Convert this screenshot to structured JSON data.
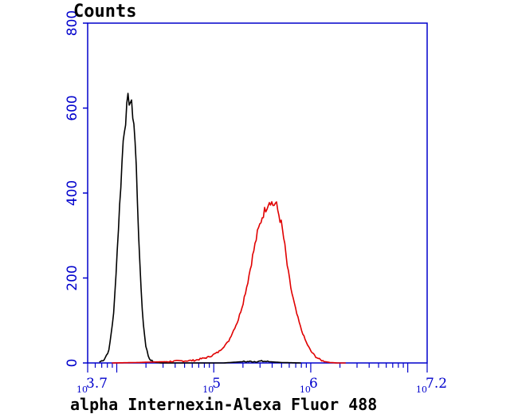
{
  "chart_data": {
    "type": "line",
    "title": "",
    "ylabel": "Counts",
    "xlabel": "alpha Internexin-Alexa Fluor 488",
    "x_scale": "log10",
    "xlim_log10": [
      3.7,
      7.2
    ],
    "ylim": [
      0,
      800
    ],
    "y_ticks": [
      0,
      200,
      400,
      600,
      800
    ],
    "y_tick_labels": [
      "0",
      "200",
      "400",
      "600",
      "800"
    ],
    "x_tick_labels": [
      {
        "base": "10",
        "exp": "3.7",
        "log10": 3.7
      },
      {
        "base": "10",
        "exp": "5",
        "log10": 5
      },
      {
        "base": "10",
        "exp": "6",
        "log10": 6
      },
      {
        "base": "10",
        "exp": "7.2",
        "log10": 7.2
      }
    ],
    "grid": false,
    "colors": {
      "axis": "#0000cc",
      "tick_label": "#0000cc",
      "series_black": "#000000",
      "series_red": "#e00000"
    },
    "series": [
      {
        "color": "#000000",
        "log10_x": [
          3.82,
          3.87,
          3.92,
          3.97,
          4.02,
          4.07,
          4.12,
          4.14,
          4.16,
          4.18,
          4.2,
          4.22,
          4.24,
          4.27,
          4.3,
          4.33,
          4.36,
          4.39,
          4.42,
          4.47,
          4.55,
          4.7,
          4.9,
          5.1,
          5.3,
          5.5,
          5.7,
          5.9
        ],
        "counts": [
          2,
          8,
          30,
          120,
          330,
          540,
          625,
          615,
          595,
          560,
          470,
          340,
          220,
          100,
          40,
          12,
          5,
          2,
          1,
          0,
          0,
          0,
          0,
          0,
          3,
          4,
          1,
          0
        ]
      },
      {
        "color": "#e00000",
        "log10_x": [
          3.95,
          4.2,
          4.5,
          4.8,
          4.95,
          5.05,
          5.15,
          5.25,
          5.3,
          5.35,
          5.4,
          5.45,
          5.5,
          5.55,
          5.58,
          5.61,
          5.64,
          5.67,
          5.7,
          5.73,
          5.76,
          5.8,
          5.85,
          5.9,
          5.95,
          6.0,
          6.05,
          6.1,
          6.15,
          6.2,
          6.28,
          6.36
        ],
        "counts": [
          0,
          1,
          3,
          6,
          14,
          26,
          50,
          100,
          140,
          190,
          250,
          305,
          345,
          372,
          385,
          372,
          376,
          350,
          325,
          280,
          225,
          170,
          120,
          80,
          50,
          28,
          15,
          7,
          3,
          1,
          0,
          0
        ]
      }
    ]
  }
}
